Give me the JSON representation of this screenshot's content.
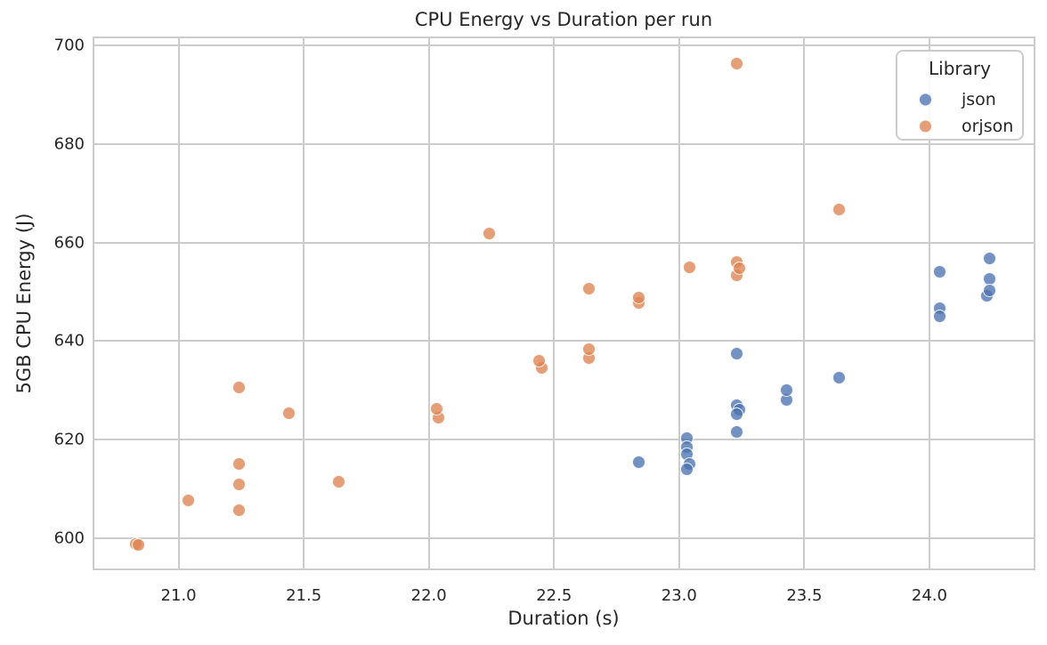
{
  "chart_data": {
    "type": "scatter",
    "title": "CPU Energy vs Duration per run",
    "xlabel": "Duration (s)",
    "ylabel": "5GB CPU Energy (J)",
    "xlim": [
      20.66,
      24.42
    ],
    "ylim": [
      593.6,
      701.7
    ],
    "xticks": [
      21.0,
      21.5,
      22.0,
      22.5,
      23.0,
      23.5,
      24.0
    ],
    "yticks": [
      600,
      620,
      640,
      660,
      680,
      700
    ],
    "grid": true,
    "legend": {
      "title": "Library",
      "position": "upper right"
    },
    "marker_alpha": 0.78,
    "grid_color": "#cccccc",
    "text_color": "#262626",
    "series": [
      {
        "name": "json",
        "color": "#4C72B0",
        "points": [
          [
            22.84,
            615.4
          ],
          [
            23.03,
            620.2
          ],
          [
            23.03,
            618.4
          ],
          [
            23.03,
            617.1
          ],
          [
            23.04,
            615.1
          ],
          [
            23.03,
            614.0
          ],
          [
            23.23,
            637.4
          ],
          [
            23.23,
            627.0
          ],
          [
            23.24,
            626.0
          ],
          [
            23.23,
            625.2
          ],
          [
            23.23,
            621.5
          ],
          [
            23.43,
            628.0
          ],
          [
            23.43,
            630.1
          ],
          [
            23.64,
            632.5
          ],
          [
            24.04,
            646.6
          ],
          [
            24.04,
            645.0
          ],
          [
            24.04,
            654.1
          ],
          [
            24.24,
            656.7
          ],
          [
            24.24,
            652.7
          ],
          [
            24.23,
            649.1
          ],
          [
            24.24,
            650.3
          ]
        ]
      },
      {
        "name": "orjson",
        "color": "#DD8452",
        "points": [
          [
            20.83,
            598.7
          ],
          [
            20.84,
            598.5
          ],
          [
            21.04,
            607.6
          ],
          [
            21.24,
            630.5
          ],
          [
            21.24,
            615.0
          ],
          [
            21.24,
            610.8
          ],
          [
            21.24,
            605.7
          ],
          [
            21.44,
            625.3
          ],
          [
            21.64,
            611.4
          ],
          [
            22.04,
            624.5
          ],
          [
            22.03,
            626.2
          ],
          [
            22.24,
            661.8
          ],
          [
            22.45,
            634.5
          ],
          [
            22.44,
            636.0
          ],
          [
            22.64,
            650.6
          ],
          [
            22.64,
            636.5
          ],
          [
            22.64,
            638.3
          ],
          [
            22.84,
            647.8
          ],
          [
            22.84,
            648.9
          ],
          [
            23.04,
            655.0
          ],
          [
            23.23,
            696.4
          ],
          [
            23.23,
            656.1
          ],
          [
            23.23,
            653.3
          ],
          [
            23.24,
            654.8
          ],
          [
            23.64,
            666.7
          ]
        ]
      }
    ]
  }
}
